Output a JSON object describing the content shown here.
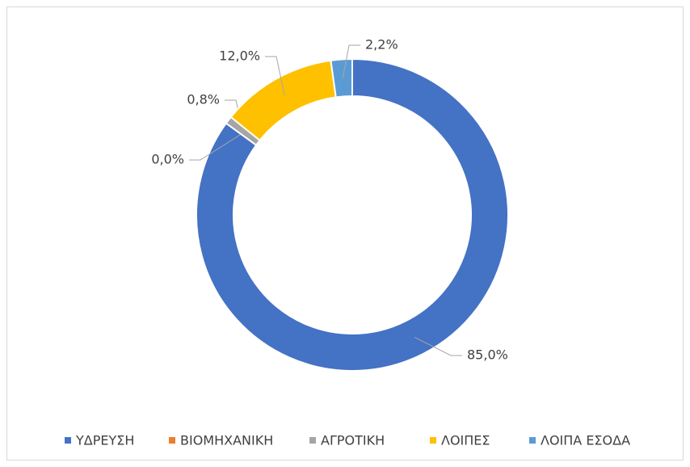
{
  "chart_data": {
    "type": "donut",
    "categories": [
      "ΥΔΡΕΥΣΗ",
      "ΒΙΟΜΗΧΑΝΙΚΗ",
      "ΑΓΡΟΤΙΚΗ",
      "ΛΟΙΠΕΣ",
      "ΛΟΙΠΑ ΕΣΟΔΑ"
    ],
    "values": [
      85.0,
      0.0,
      0.8,
      12.0,
      2.2
    ],
    "value_labels": [
      "85,0%",
      "0,0%",
      "0,8%",
      "12,0%",
      "2,2%"
    ],
    "colors": [
      "#4472c4",
      "#ed7d31",
      "#a5a5a5",
      "#ffc000",
      "#5b9bd5"
    ],
    "legend": "bottom"
  }
}
